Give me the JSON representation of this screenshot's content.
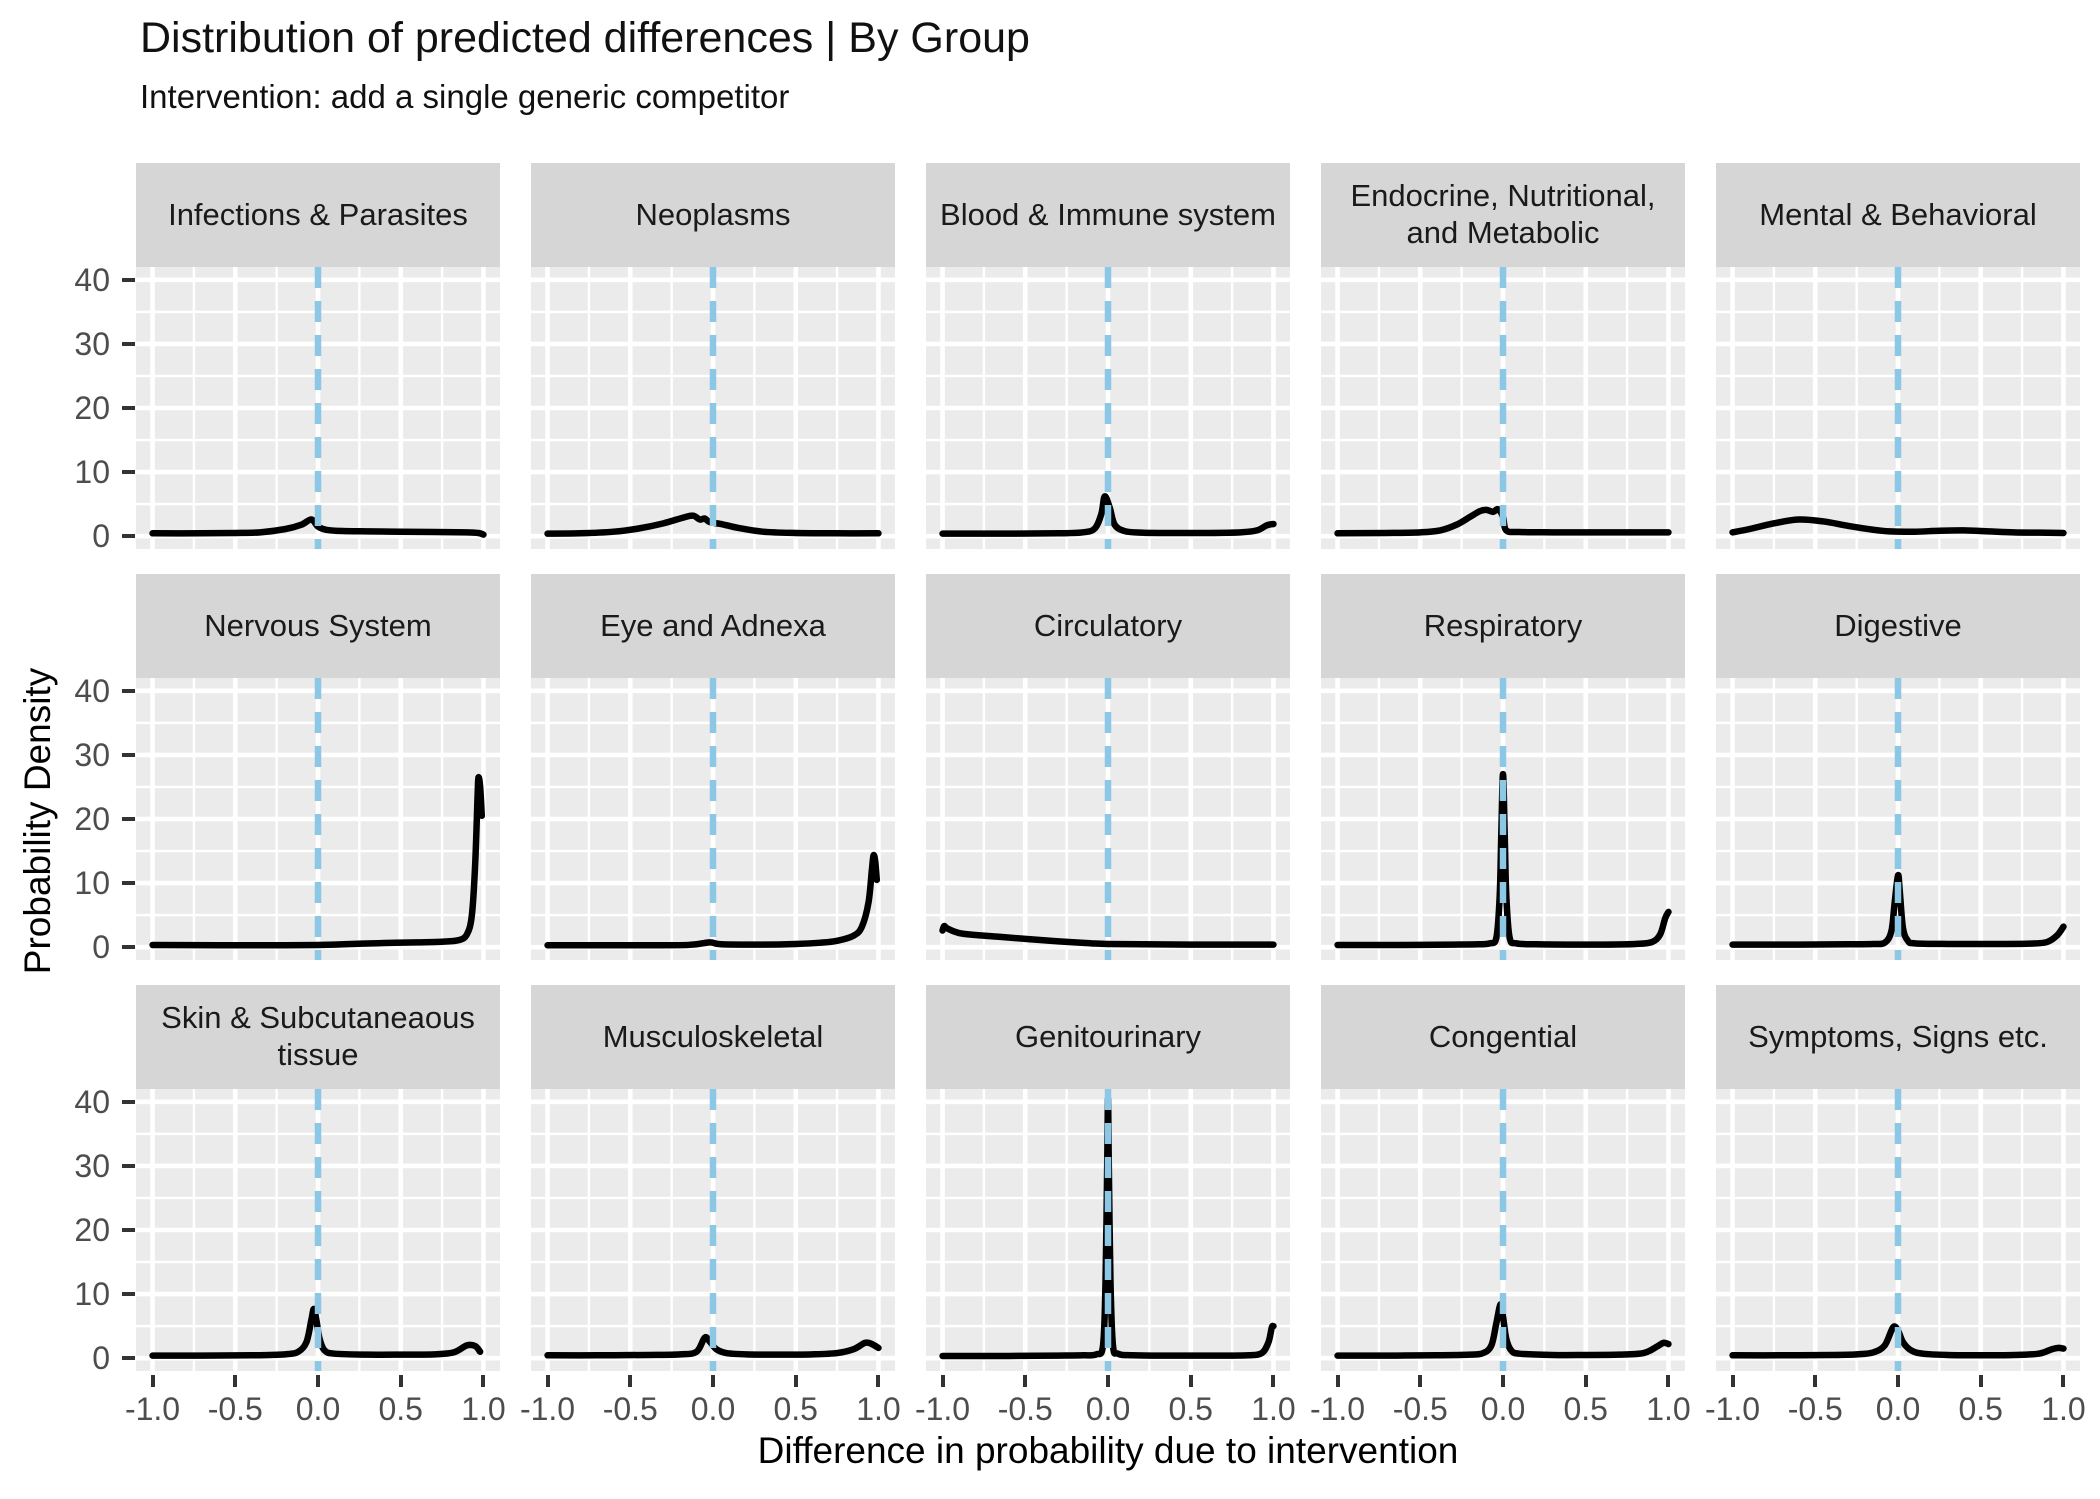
{
  "header": {
    "title": "Distribution of predicted differences | By Group",
    "subtitle": "Intervention: add a single generic competitor"
  },
  "axes": {
    "x_title": "Difference in probability due to intervention",
    "y_title": "Probability Density",
    "x_tick_labels": [
      "-1.0",
      "-0.5",
      "0.0",
      "0.5",
      "1.0"
    ],
    "y_tick_labels": [
      "0",
      "10",
      "20",
      "30",
      "40"
    ]
  },
  "style": {
    "panel_bg": "#EBEBEB",
    "strip_bg": "#D6D6D6",
    "grid_color": "#FFFFFF",
    "vline_color": "#8CC8E6",
    "curve_color": "#000000",
    "tick_label_color": "#4D4D4D",
    "text_color": "#1A1A1A"
  },
  "chart_data": {
    "type": "line",
    "title": "Distribution of predicted differences | By Group",
    "subtitle": "Intervention: add a single generic competitor",
    "xlabel": "Difference in probability due to intervention",
    "ylabel": "Probability Density",
    "x_range": [
      -1,
      1
    ],
    "y_range": [
      0,
      40
    ],
    "x_ticks": [
      -1,
      -0.5,
      0,
      0.5,
      1
    ],
    "y_ticks": [
      0,
      10,
      20,
      30,
      40
    ],
    "x_minor": [
      -0.75,
      -0.25,
      0.25,
      0.75
    ],
    "y_minor": [
      5,
      15,
      25,
      35
    ],
    "vline_x": 0,
    "grid": "on",
    "legend": "none",
    "layout": {
      "rows": 3,
      "cols": 5
    },
    "facets": [
      {
        "label": "Infections & Parasites",
        "points": [
          [
            -1,
            0.45
          ],
          [
            -0.7,
            0.45
          ],
          [
            -0.5,
            0.5
          ],
          [
            -0.35,
            0.6
          ],
          [
            -0.2,
            1.1
          ],
          [
            -0.1,
            1.8
          ],
          [
            -0.04,
            2.6
          ],
          [
            0.0,
            1.5
          ],
          [
            0.05,
            1.0
          ],
          [
            0.15,
            0.8
          ],
          [
            0.3,
            0.75
          ],
          [
            0.5,
            0.7
          ],
          [
            0.7,
            0.65
          ],
          [
            0.9,
            0.6
          ],
          [
            0.97,
            0.5
          ],
          [
            1,
            0.25
          ]
        ]
      },
      {
        "label": "Neoplasms",
        "points": [
          [
            -1,
            0.4
          ],
          [
            -0.8,
            0.45
          ],
          [
            -0.6,
            0.7
          ],
          [
            -0.45,
            1.2
          ],
          [
            -0.3,
            2.0
          ],
          [
            -0.18,
            2.9
          ],
          [
            -0.12,
            3.2
          ],
          [
            -0.08,
            2.6
          ],
          [
            -0.05,
            2.75
          ],
          [
            -0.02,
            2.2
          ],
          [
            0.05,
            1.9
          ],
          [
            0.15,
            1.3
          ],
          [
            0.3,
            0.7
          ],
          [
            0.5,
            0.5
          ],
          [
            0.75,
            0.45
          ],
          [
            1,
            0.45
          ]
        ]
      },
      {
        "label": "Blood & Immune system",
        "points": [
          [
            -1,
            0.4
          ],
          [
            -0.6,
            0.4
          ],
          [
            -0.3,
            0.45
          ],
          [
            -0.15,
            0.6
          ],
          [
            -0.08,
            1.2
          ],
          [
            -0.04,
            3.5
          ],
          [
            -0.02,
            6.2
          ],
          [
            0.01,
            4.5
          ],
          [
            0.04,
            1.8
          ],
          [
            0.1,
            0.8
          ],
          [
            0.2,
            0.55
          ],
          [
            0.4,
            0.5
          ],
          [
            0.6,
            0.5
          ],
          [
            0.8,
            0.6
          ],
          [
            0.9,
            0.9
          ],
          [
            0.96,
            1.7
          ],
          [
            1,
            1.9
          ]
        ]
      },
      {
        "label": "Endocrine, Nutritional,\nand Metabolic",
        "points": [
          [
            -1,
            0.45
          ],
          [
            -0.7,
            0.5
          ],
          [
            -0.5,
            0.6
          ],
          [
            -0.38,
            0.9
          ],
          [
            -0.28,
            1.8
          ],
          [
            -0.2,
            3.0
          ],
          [
            -0.14,
            3.9
          ],
          [
            -0.1,
            4.1
          ],
          [
            -0.06,
            3.8
          ],
          [
            -0.03,
            4.2
          ],
          [
            0.0,
            3.0
          ],
          [
            0.02,
            0.9
          ],
          [
            0.1,
            0.65
          ],
          [
            0.3,
            0.6
          ],
          [
            0.6,
            0.6
          ],
          [
            1,
            0.6
          ]
        ]
      },
      {
        "label": "Mental & Behavioral",
        "points": [
          [
            -1,
            0.6
          ],
          [
            -0.9,
            1.1
          ],
          [
            -0.75,
            2.0
          ],
          [
            -0.6,
            2.6
          ],
          [
            -0.45,
            2.3
          ],
          [
            -0.3,
            1.6
          ],
          [
            -0.15,
            1.0
          ],
          [
            -0.05,
            0.75
          ],
          [
            0.1,
            0.7
          ],
          [
            0.25,
            0.85
          ],
          [
            0.4,
            0.9
          ],
          [
            0.55,
            0.75
          ],
          [
            0.7,
            0.6
          ],
          [
            0.85,
            0.55
          ],
          [
            1,
            0.5
          ]
        ]
      },
      {
        "label": "Nervous System",
        "points": [
          [
            -1,
            0.35
          ],
          [
            -0.6,
            0.3
          ],
          [
            -0.3,
            0.3
          ],
          [
            0,
            0.35
          ],
          [
            0.2,
            0.5
          ],
          [
            0.4,
            0.65
          ],
          [
            0.6,
            0.75
          ],
          [
            0.75,
            0.85
          ],
          [
            0.85,
            1.1
          ],
          [
            0.9,
            2.0
          ],
          [
            0.93,
            5
          ],
          [
            0.95,
            13
          ],
          [
            0.965,
            24
          ],
          [
            0.97,
            26.5
          ],
          [
            0.98,
            25
          ],
          [
            0.99,
            20.5
          ]
        ]
      },
      {
        "label": "Eye and Adnexa",
        "points": [
          [
            -1,
            0.3
          ],
          [
            -0.5,
            0.3
          ],
          [
            -0.15,
            0.35
          ],
          [
            -0.02,
            0.75
          ],
          [
            0.05,
            0.45
          ],
          [
            0.3,
            0.4
          ],
          [
            0.5,
            0.5
          ],
          [
            0.65,
            0.7
          ],
          [
            0.75,
            1.0
          ],
          [
            0.85,
            1.8
          ],
          [
            0.9,
            3.2
          ],
          [
            0.94,
            7
          ],
          [
            0.96,
            12
          ],
          [
            0.97,
            14.3
          ],
          [
            0.98,
            13.5
          ],
          [
            0.99,
            10.5
          ]
        ]
      },
      {
        "label": "Circulatory",
        "points": [
          [
            -1,
            2.6
          ],
          [
            -0.99,
            3.3
          ],
          [
            -0.97,
            2.9
          ],
          [
            -0.9,
            2.2
          ],
          [
            -0.8,
            1.9
          ],
          [
            -0.65,
            1.6
          ],
          [
            -0.5,
            1.3
          ],
          [
            -0.35,
            1.0
          ],
          [
            -0.2,
            0.75
          ],
          [
            -0.1,
            0.6
          ],
          [
            0,
            0.5
          ],
          [
            0.2,
            0.45
          ],
          [
            0.5,
            0.4
          ],
          [
            0.8,
            0.4
          ],
          [
            1,
            0.4
          ]
        ]
      },
      {
        "label": "Respiratory",
        "points": [
          [
            -1,
            0.35
          ],
          [
            -0.6,
            0.35
          ],
          [
            -0.3,
            0.4
          ],
          [
            -0.15,
            0.45
          ],
          [
            -0.08,
            0.6
          ],
          [
            -0.04,
            1.5
          ],
          [
            -0.02,
            8
          ],
          [
            -0.01,
            18
          ],
          [
            0,
            27
          ],
          [
            0.01,
            18
          ],
          [
            0.02,
            8
          ],
          [
            0.04,
            1.5
          ],
          [
            0.08,
            0.6
          ],
          [
            0.2,
            0.45
          ],
          [
            0.4,
            0.4
          ],
          [
            0.6,
            0.4
          ],
          [
            0.8,
            0.5
          ],
          [
            0.9,
            0.8
          ],
          [
            0.95,
            2.0
          ],
          [
            0.98,
            4.5
          ],
          [
            1,
            5.5
          ]
        ]
      },
      {
        "label": "Digestive",
        "points": [
          [
            -1,
            0.4
          ],
          [
            -0.6,
            0.4
          ],
          [
            -0.3,
            0.45
          ],
          [
            -0.15,
            0.5
          ],
          [
            -0.08,
            0.7
          ],
          [
            -0.04,
            2.5
          ],
          [
            -0.02,
            7
          ],
          [
            0,
            11.2
          ],
          [
            0.01,
            9
          ],
          [
            0.03,
            3
          ],
          [
            0.06,
            1.0
          ],
          [
            0.1,
            0.6
          ],
          [
            0.3,
            0.5
          ],
          [
            0.6,
            0.5
          ],
          [
            0.8,
            0.55
          ],
          [
            0.9,
            0.8
          ],
          [
            0.96,
            1.8
          ],
          [
            1,
            3.2
          ]
        ]
      },
      {
        "label": "Skin & Subcutaneaous\ntissue",
        "points": [
          [
            -1,
            0.4
          ],
          [
            -0.7,
            0.4
          ],
          [
            -0.4,
            0.45
          ],
          [
            -0.2,
            0.6
          ],
          [
            -0.12,
            1.0
          ],
          [
            -0.07,
            2.5
          ],
          [
            -0.04,
            6
          ],
          [
            -0.025,
            7.7
          ],
          [
            -0.01,
            6
          ],
          [
            0.01,
            3
          ],
          [
            0.04,
            1.2
          ],
          [
            0.1,
            0.7
          ],
          [
            0.3,
            0.55
          ],
          [
            0.5,
            0.55
          ],
          [
            0.7,
            0.6
          ],
          [
            0.82,
            0.9
          ],
          [
            0.9,
            2.0
          ],
          [
            0.95,
            1.9
          ],
          [
            0.98,
            1.0
          ]
        ]
      },
      {
        "label": "Musculoskeletal",
        "points": [
          [
            -1,
            0.45
          ],
          [
            -0.7,
            0.45
          ],
          [
            -0.4,
            0.5
          ],
          [
            -0.2,
            0.6
          ],
          [
            -0.1,
            1.0
          ],
          [
            -0.05,
            3.2
          ],
          [
            -0.02,
            2.6
          ],
          [
            0.02,
            1.4
          ],
          [
            0.08,
            0.8
          ],
          [
            0.2,
            0.6
          ],
          [
            0.4,
            0.55
          ],
          [
            0.6,
            0.6
          ],
          [
            0.75,
            0.8
          ],
          [
            0.85,
            1.4
          ],
          [
            0.92,
            2.4
          ],
          [
            0.96,
            2.2
          ],
          [
            1,
            1.6
          ]
        ]
      },
      {
        "label": "Genitourinary",
        "points": [
          [
            -1,
            0.35
          ],
          [
            -0.6,
            0.35
          ],
          [
            -0.3,
            0.4
          ],
          [
            -0.15,
            0.45
          ],
          [
            -0.07,
            0.6
          ],
          [
            -0.03,
            2
          ],
          [
            -0.015,
            12
          ],
          [
            -0.005,
            30
          ],
          [
            0,
            40.5
          ],
          [
            0.005,
            30
          ],
          [
            0.015,
            12
          ],
          [
            0.03,
            2
          ],
          [
            0.06,
            0.7
          ],
          [
            0.15,
            0.45
          ],
          [
            0.4,
            0.4
          ],
          [
            0.7,
            0.4
          ],
          [
            0.85,
            0.45
          ],
          [
            0.93,
            0.8
          ],
          [
            0.97,
            2.5
          ],
          [
            0.99,
            4.8
          ],
          [
            1,
            5.0
          ]
        ]
      },
      {
        "label": "Congential",
        "points": [
          [
            -1,
            0.4
          ],
          [
            -0.7,
            0.4
          ],
          [
            -0.4,
            0.45
          ],
          [
            -0.2,
            0.55
          ],
          [
            -0.12,
            0.8
          ],
          [
            -0.07,
            2
          ],
          [
            -0.04,
            5.5
          ],
          [
            -0.015,
            8.4
          ],
          [
            0,
            6.5
          ],
          [
            0.02,
            3
          ],
          [
            0.05,
            1.2
          ],
          [
            0.1,
            0.7
          ],
          [
            0.3,
            0.5
          ],
          [
            0.5,
            0.5
          ],
          [
            0.7,
            0.55
          ],
          [
            0.85,
            0.8
          ],
          [
            0.93,
            1.8
          ],
          [
            0.97,
            2.4
          ],
          [
            1,
            2.2
          ]
        ]
      },
      {
        "label": "Symptoms, Signs etc.",
        "points": [
          [
            -1,
            0.45
          ],
          [
            -0.7,
            0.45
          ],
          [
            -0.4,
            0.5
          ],
          [
            -0.25,
            0.6
          ],
          [
            -0.15,
            0.9
          ],
          [
            -0.08,
            2
          ],
          [
            -0.03,
            4.8
          ],
          [
            0,
            4.3
          ],
          [
            0.03,
            2.5
          ],
          [
            0.08,
            1.2
          ],
          [
            0.15,
            0.7
          ],
          [
            0.3,
            0.5
          ],
          [
            0.5,
            0.45
          ],
          [
            0.7,
            0.5
          ],
          [
            0.85,
            0.7
          ],
          [
            0.93,
            1.4
          ],
          [
            0.97,
            1.6
          ],
          [
            1,
            1.5
          ]
        ]
      }
    ]
  }
}
